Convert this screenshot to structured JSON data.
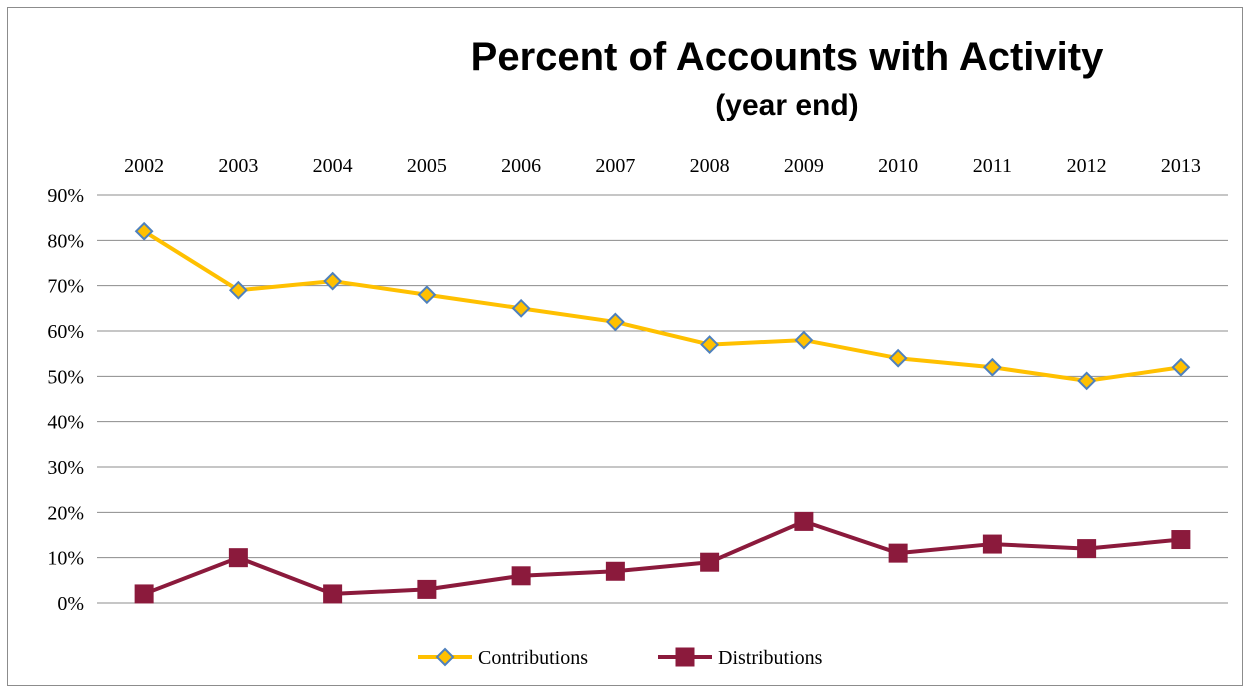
{
  "chart_data": {
    "type": "line",
    "title": "Percent of Accounts with Activity",
    "subtitle": "(year end)",
    "categories": [
      "2002",
      "2003",
      "2004",
      "2005",
      "2006",
      "2007",
      "2008",
      "2009",
      "2010",
      "2011",
      "2012",
      "2013"
    ],
    "series": [
      {
        "name": "Contributions",
        "values": [
          82,
          69,
          71,
          68,
          65,
          62,
          57,
          58,
          54,
          52,
          49,
          52
        ],
        "color": "#FFC000",
        "marker": "diamond",
        "marker_fill": "#FFC000",
        "marker_stroke": "#4F81BD"
      },
      {
        "name": "Distributions",
        "values": [
          2,
          10,
          2,
          3,
          6,
          7,
          9,
          18,
          11,
          13,
          12,
          14
        ],
        "color": "#8B1A3C",
        "marker": "square",
        "marker_fill": "#8B1A3C",
        "marker_stroke": "#8B1A3C"
      }
    ],
    "ylim": [
      0,
      90
    ],
    "yticks": [
      "0%",
      "10%",
      "20%",
      "30%",
      "40%",
      "50%",
      "60%",
      "70%",
      "80%",
      "90%"
    ],
    "xaxis_position": "top",
    "grid": true,
    "gridline_color": "#8c8c8c",
    "legend": "bottom"
  }
}
